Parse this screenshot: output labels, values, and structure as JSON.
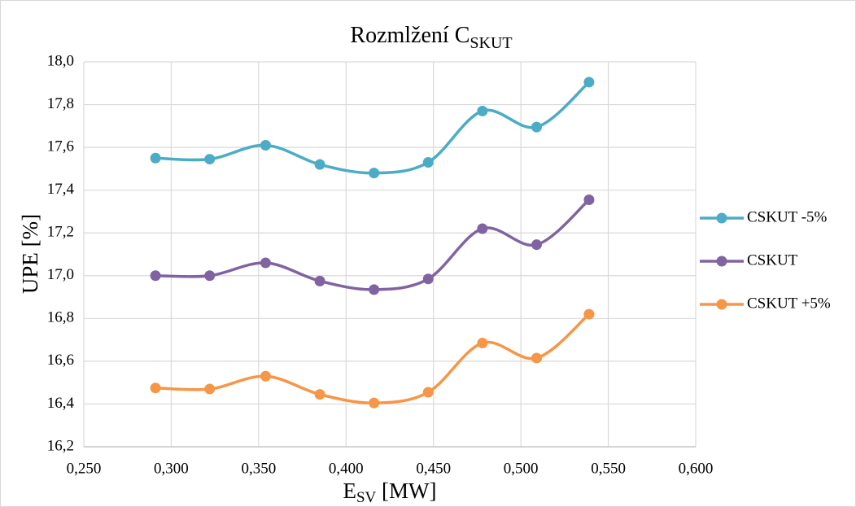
{
  "chart_data": {
    "type": "line",
    "title": "Rozmlžení C",
    "title_subscript": "SKUT",
    "x_label": "E",
    "x_label_subscript": "SV",
    "x_label_unit": " [MW]",
    "y_label": "UPE [%]",
    "x": [
      0.291,
      0.322,
      0.354,
      0.385,
      0.416,
      0.447,
      0.478,
      0.509,
      0.539
    ],
    "series": [
      {
        "name": "CSKUT -5%",
        "color": "#4bacc6",
        "values": [
          17.55,
          17.545,
          17.61,
          17.52,
          17.48,
          17.53,
          17.77,
          17.695,
          17.905
        ]
      },
      {
        "name": "CSKUT",
        "color": "#8064a2",
        "values": [
          17.0,
          17.0,
          17.06,
          16.975,
          16.935,
          16.985,
          17.22,
          17.145,
          17.355
        ]
      },
      {
        "name": "CSKUT +5%",
        "color": "#f79646",
        "values": [
          16.475,
          16.47,
          16.53,
          16.445,
          16.405,
          16.455,
          16.685,
          16.615,
          16.82
        ]
      }
    ],
    "xlim": [
      0.25,
      0.6
    ],
    "xticks": [
      {
        "value": 0.25,
        "label": "0,250"
      },
      {
        "value": 0.3,
        "label": "0,300"
      },
      {
        "value": 0.35,
        "label": "0,350"
      },
      {
        "value": 0.4,
        "label": "0,400"
      },
      {
        "value": 0.45,
        "label": "0,450"
      },
      {
        "value": 0.5,
        "label": "0,500"
      },
      {
        "value": 0.55,
        "label": "0,550"
      },
      {
        "value": 0.6,
        "label": "0,600"
      }
    ],
    "ylim": [
      16.2,
      18.0
    ],
    "yticks": [
      {
        "value": 16.2,
        "label": "16,2"
      },
      {
        "value": 16.4,
        "label": "16,4"
      },
      {
        "value": 16.6,
        "label": "16,6"
      },
      {
        "value": 16.8,
        "label": "16,8"
      },
      {
        "value": 17.0,
        "label": "17,0"
      },
      {
        "value": 17.2,
        "label": "17,2"
      },
      {
        "value": 17.4,
        "label": "17,4"
      },
      {
        "value": 17.6,
        "label": "17,6"
      },
      {
        "value": 17.8,
        "label": "17,8"
      },
      {
        "value": 18.0,
        "label": "18,0"
      }
    ],
    "grid": true,
    "smooth": true,
    "legend": "right"
  }
}
